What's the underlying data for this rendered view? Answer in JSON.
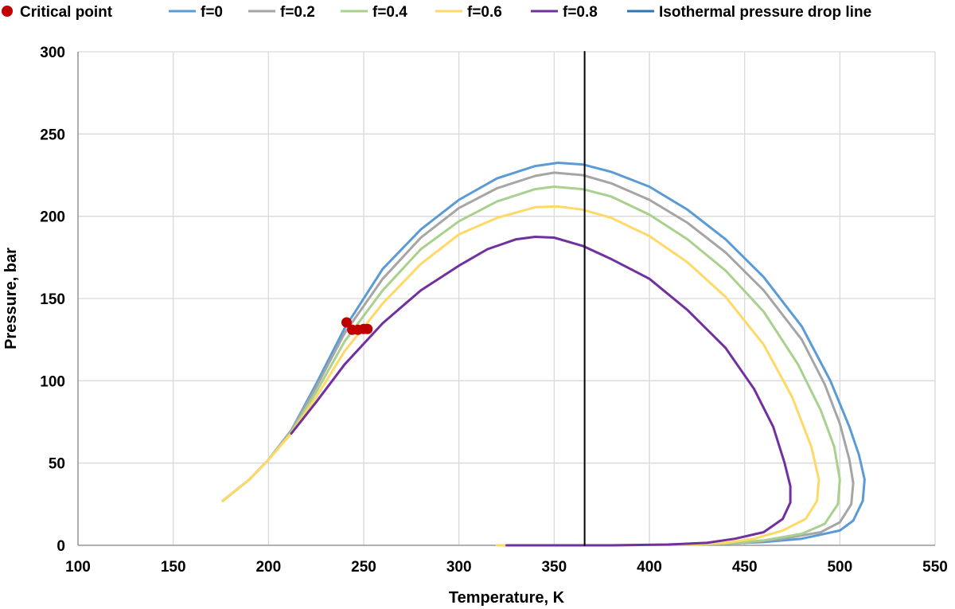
{
  "chart_data": {
    "type": "line",
    "title": "",
    "xlabel": "Temperature, K",
    "ylabel": "Pressure, bar",
    "xlim": [
      100,
      550
    ],
    "ylim": [
      0,
      300
    ],
    "x_ticks": [
      100,
      150,
      200,
      250,
      300,
      350,
      400,
      450,
      500,
      550
    ],
    "y_ticks": [
      0,
      50,
      100,
      150,
      200,
      250,
      300
    ],
    "grid": true,
    "legend_position": "top",
    "critical_points": {
      "name": "Critical point",
      "color": "#c00000",
      "points": [
        [
          241,
          135.5
        ],
        [
          244,
          131
        ],
        [
          247,
          131
        ],
        [
          250,
          131.5
        ],
        [
          252,
          131.5
        ]
      ]
    },
    "series": [
      {
        "name": "f=0",
        "color": "#5b9bd5",
        "points": [
          [
            176,
            27
          ],
          [
            190,
            40
          ],
          [
            200,
            52
          ],
          [
            212,
            70
          ],
          [
            225,
            98
          ],
          [
            240,
            132
          ],
          [
            260,
            168
          ],
          [
            280,
            192
          ],
          [
            300,
            210
          ],
          [
            320,
            223
          ],
          [
            340,
            230.5
          ],
          [
            352,
            232.5
          ],
          [
            365,
            231.5
          ],
          [
            380,
            227
          ],
          [
            400,
            218
          ],
          [
            420,
            204
          ],
          [
            440,
            186
          ],
          [
            460,
            163
          ],
          [
            480,
            133
          ],
          [
            495,
            100
          ],
          [
            505,
            72
          ],
          [
            510,
            55
          ],
          [
            513,
            40
          ],
          [
            512,
            27
          ],
          [
            507,
            15
          ],
          [
            500,
            9
          ],
          [
            480,
            4
          ],
          [
            460,
            2
          ],
          [
            440,
            1
          ],
          [
            420,
            0.5
          ]
        ]
      },
      {
        "name": "f=0.2",
        "color": "#a5a5a5",
        "points": [
          [
            176,
            27
          ],
          [
            190,
            40
          ],
          [
            200,
            52
          ],
          [
            212,
            70
          ],
          [
            225,
            96
          ],
          [
            240,
            129
          ],
          [
            260,
            162
          ],
          [
            280,
            187
          ],
          [
            300,
            205
          ],
          [
            320,
            217
          ],
          [
            340,
            224.5
          ],
          [
            350,
            226.5
          ],
          [
            365,
            225
          ],
          [
            380,
            220
          ],
          [
            400,
            210
          ],
          [
            420,
            196
          ],
          [
            440,
            178
          ],
          [
            460,
            155
          ],
          [
            480,
            125
          ],
          [
            492,
            98
          ],
          [
            500,
            74
          ],
          [
            505,
            52
          ],
          [
            507,
            38
          ],
          [
            506,
            25
          ],
          [
            500,
            14
          ],
          [
            490,
            8
          ],
          [
            470,
            4
          ],
          [
            450,
            1.5
          ],
          [
            430,
            0.5
          ]
        ]
      },
      {
        "name": "f=0.4",
        "color": "#a9d18e",
        "points": [
          [
            176,
            27
          ],
          [
            190,
            40
          ],
          [
            200,
            52
          ],
          [
            212,
            69
          ],
          [
            225,
            93
          ],
          [
            240,
            124
          ],
          [
            260,
            155
          ],
          [
            280,
            180
          ],
          [
            300,
            197
          ],
          [
            320,
            209
          ],
          [
            340,
            216.5
          ],
          [
            350,
            218
          ],
          [
            365,
            216.5
          ],
          [
            380,
            212
          ],
          [
            400,
            201
          ],
          [
            420,
            186
          ],
          [
            440,
            167
          ],
          [
            460,
            142
          ],
          [
            478,
            110
          ],
          [
            490,
            82
          ],
          [
            497,
            60
          ],
          [
            500,
            40
          ],
          [
            499,
            25
          ],
          [
            492,
            13
          ],
          [
            480,
            7
          ],
          [
            460,
            3
          ],
          [
            440,
            1
          ],
          [
            420,
            0.3
          ]
        ]
      },
      {
        "name": "f=0.6",
        "color": "#ffd966",
        "points": [
          [
            176,
            27
          ],
          [
            190,
            40
          ],
          [
            200,
            52
          ],
          [
            212,
            68
          ],
          [
            225,
            90
          ],
          [
            240,
            118
          ],
          [
            260,
            147
          ],
          [
            280,
            171
          ],
          [
            300,
            189
          ],
          [
            320,
            199
          ],
          [
            340,
            205.5
          ],
          [
            352,
            206
          ],
          [
            365,
            204
          ],
          [
            380,
            199
          ],
          [
            400,
            188
          ],
          [
            420,
            172
          ],
          [
            440,
            151
          ],
          [
            460,
            122
          ],
          [
            475,
            90
          ],
          [
            485,
            60
          ],
          [
            489,
            40
          ],
          [
            488,
            27
          ],
          [
            482,
            16
          ],
          [
            470,
            9
          ],
          [
            455,
            4
          ],
          [
            440,
            1.5
          ],
          [
            420,
            0.5
          ],
          [
            380,
            0
          ],
          [
            320,
            0
          ]
        ]
      },
      {
        "name": "f=0.8",
        "color": "#7030a0",
        "points": [
          [
            212,
            68
          ],
          [
            225,
            87
          ],
          [
            240,
            110
          ],
          [
            260,
            135
          ],
          [
            280,
            155
          ],
          [
            300,
            170
          ],
          [
            315,
            180
          ],
          [
            330,
            186
          ],
          [
            340,
            187.5
          ],
          [
            350,
            187
          ],
          [
            365,
            182
          ],
          [
            380,
            174
          ],
          [
            400,
            162
          ],
          [
            420,
            143
          ],
          [
            440,
            120
          ],
          [
            455,
            95
          ],
          [
            465,
            72
          ],
          [
            471,
            50
          ],
          [
            474,
            36
          ],
          [
            474,
            26
          ],
          [
            470,
            16
          ],
          [
            460,
            8
          ],
          [
            445,
            4
          ],
          [
            430,
            1.5
          ],
          [
            410,
            0.5
          ],
          [
            380,
            0
          ],
          [
            325,
            0
          ]
        ]
      },
      {
        "name": "Isothermal pressure drop line",
        "color": "#000000",
        "legend_color": "#2e75b6",
        "points": [
          [
            366,
            0
          ],
          [
            366,
            300
          ]
        ]
      }
    ]
  }
}
